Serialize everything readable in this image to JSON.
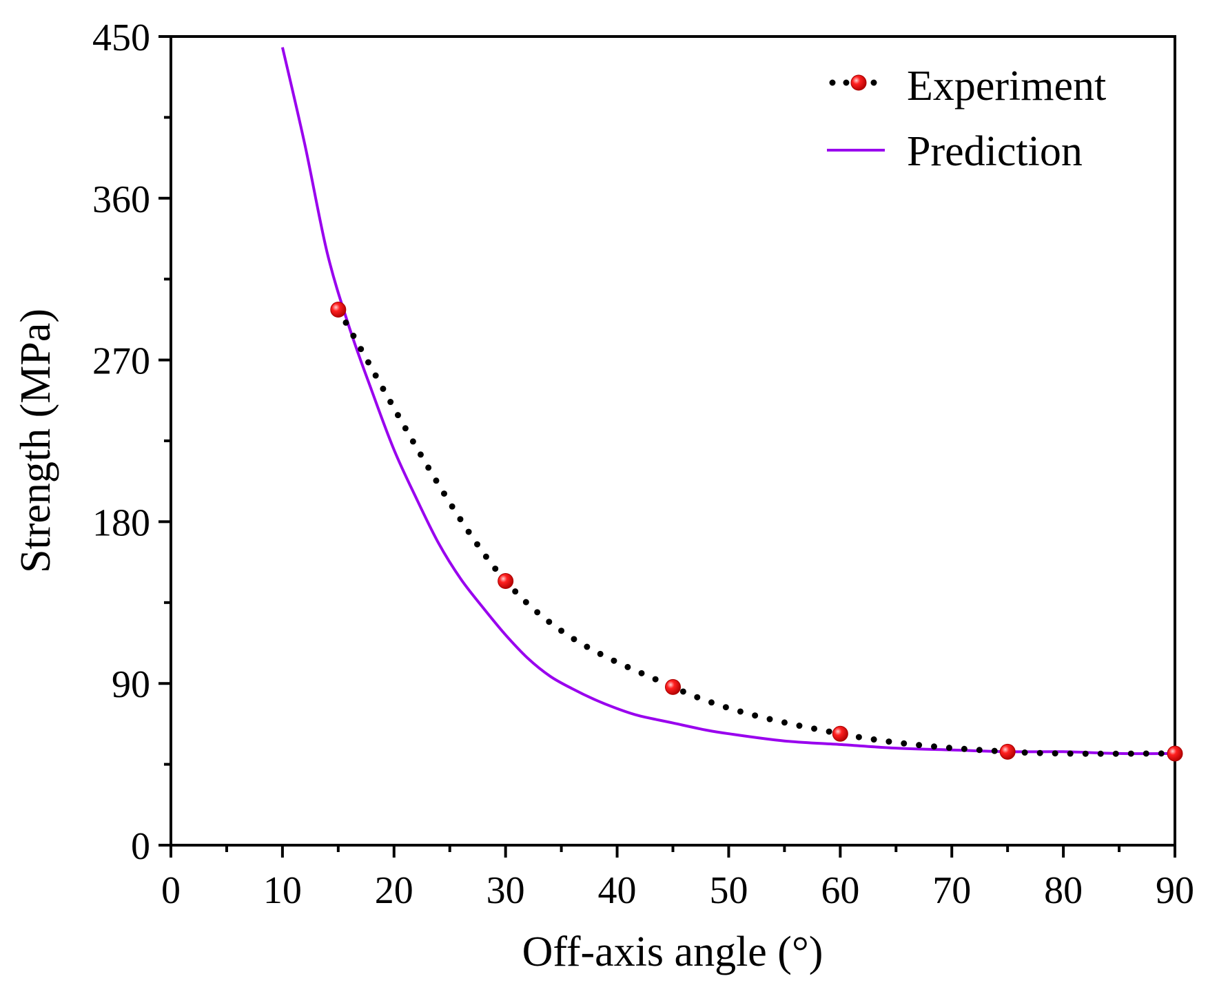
{
  "chart_data": {
    "type": "line",
    "xlabel": "Off-axis angle (°)",
    "ylabel": "Strength (MPa)",
    "xlim": [
      0,
      90
    ],
    "ylim": [
      0,
      450
    ],
    "xticks": [
      0,
      10,
      20,
      30,
      40,
      50,
      60,
      70,
      80,
      90
    ],
    "yticks": [
      0,
      90,
      180,
      270,
      360,
      450
    ],
    "xtick_labels": [
      "0",
      "10",
      "20",
      "30",
      "40",
      "50",
      "60",
      "70",
      "80",
      "90"
    ],
    "ytick_labels": [
      "0",
      "90",
      "180",
      "270",
      "360",
      "450"
    ],
    "grid": false,
    "legend_position": "top-right",
    "series": [
      {
        "name": "Experiment",
        "style": "dotted-markers",
        "line_color": "#000000",
        "marker_color": "#ff0000",
        "x": [
          15,
          30,
          45,
          60,
          75,
          90
        ],
        "y": [
          298,
          147,
          88,
          62,
          52,
          51
        ]
      },
      {
        "name": "Prediction",
        "style": "solid",
        "line_color": "#9900ee",
        "x": [
          10,
          12,
          14,
          16,
          18,
          20,
          22,
          24,
          26,
          28,
          30,
          32,
          34,
          36,
          38,
          40,
          42,
          45,
          48,
          50,
          55,
          60,
          65,
          70,
          75,
          80,
          85,
          90
        ],
        "y": [
          444,
          390,
          330,
          288,
          253,
          220,
          193,
          168,
          148,
          132,
          117,
          104,
          94,
          87,
          81,
          76,
          72,
          68,
          64,
          62,
          58,
          56,
          54,
          53,
          52,
          52,
          51,
          51
        ]
      }
    ]
  }
}
